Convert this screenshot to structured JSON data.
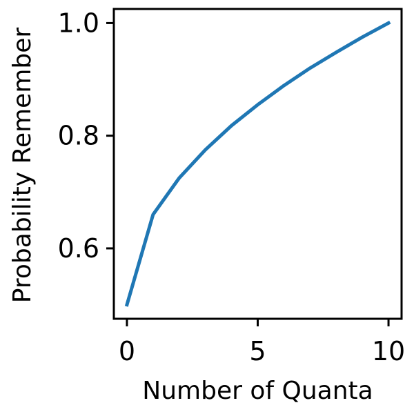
{
  "chart_data": {
    "type": "line",
    "title": "",
    "xlabel": "Number of Quanta",
    "ylabel": "Probability Remember",
    "xlim": [
      -0.5,
      10.5
    ],
    "ylim": [
      0.475,
      1.025
    ],
    "grid": false,
    "x_ticks": [
      0,
      5,
      10
    ],
    "x_tick_labels": [
      "0",
      "5",
      "10"
    ],
    "y_ticks": [
      0.6,
      0.8,
      1.0
    ],
    "y_tick_labels": [
      "0.6",
      "0.8",
      "1.0"
    ],
    "series": [
      {
        "color": "#1f77b4",
        "x": [
          0,
          1,
          2,
          3,
          4,
          5,
          6,
          7,
          8,
          9,
          10
        ],
        "y": [
          0.5,
          0.66,
          0.725,
          0.775,
          0.818,
          0.855,
          0.889,
          0.92,
          0.948,
          0.975,
          1.0
        ]
      }
    ]
  }
}
